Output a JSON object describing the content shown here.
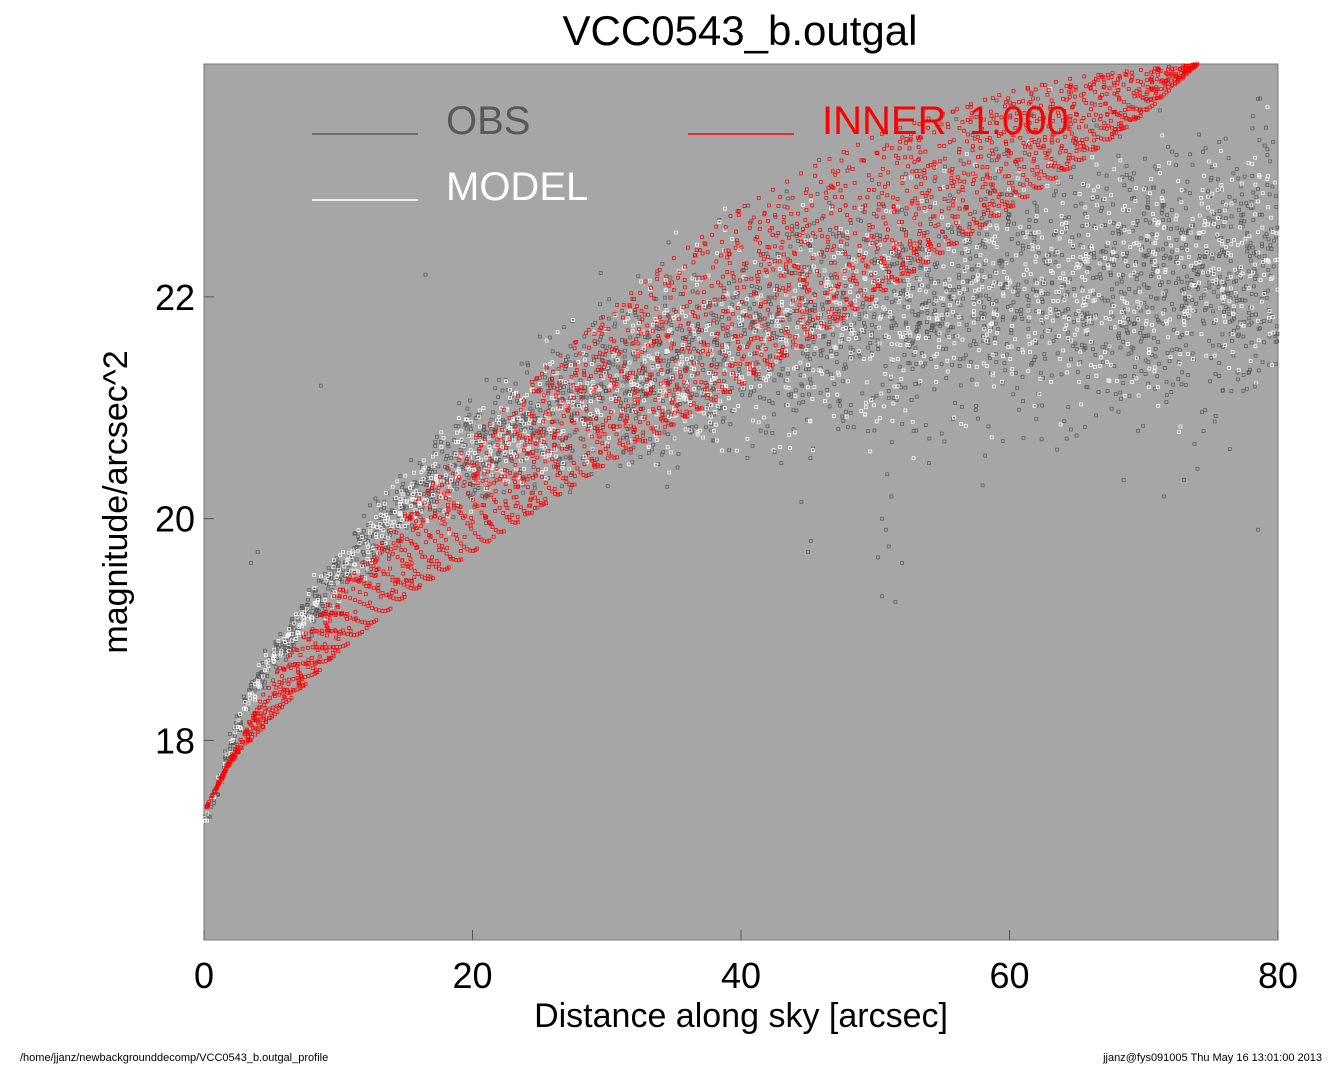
{
  "chart_data": {
    "type": "scatter",
    "title": "VCC0543_b.outgal",
    "xlabel": "Distance along sky [arcsec]",
    "ylabel": "magnitude/arcsec^2",
    "xlim": [
      0,
      80
    ],
    "ylim": [
      24.1,
      16.2
    ],
    "y_inverted": true,
    "xticks": [
      "0",
      "20",
      "40",
      "60",
      "80"
    ],
    "yticks": [
      "18",
      "20",
      "22"
    ],
    "background": "#a6a6a6",
    "grid": false,
    "legend_position": "top",
    "legend": [
      {
        "label": "OBS",
        "color": "#595959"
      },
      {
        "label": "MODEL",
        "color": "#ffffff"
      },
      {
        "label": "INNER  1.000",
        "color": "#ff0000"
      }
    ],
    "series": [
      {
        "name": "OBS",
        "color": "#595959",
        "profile_x": [
          0.2,
          1,
          2,
          3,
          5,
          7.5,
          10,
          13,
          16,
          20,
          25,
          30,
          35,
          40,
          45,
          50,
          55,
          60,
          65,
          70,
          75,
          80
        ],
        "profile_y_center": [
          17.3,
          17.6,
          17.95,
          18.3,
          18.7,
          19.1,
          19.5,
          19.9,
          20.2,
          20.55,
          20.9,
          21.2,
          21.4,
          21.6,
          21.75,
          21.9,
          22.0,
          22.1,
          22.15,
          22.2,
          22.25,
          22.3
        ],
        "profile_spread": [
          0.05,
          0.08,
          0.1,
          0.12,
          0.14,
          0.17,
          0.2,
          0.25,
          0.3,
          0.4,
          0.5,
          0.6,
          0.7,
          0.8,
          0.85,
          0.9,
          0.95,
          1.0,
          1.0,
          1.05,
          1.05,
          1.1
        ]
      },
      {
        "name": "MODEL",
        "color": "#ffffff",
        "profile_x": [
          0.2,
          1,
          2,
          3,
          5,
          7.5,
          10,
          13,
          16,
          20,
          25,
          30,
          35,
          40,
          45,
          50,
          55,
          60,
          65,
          70,
          75,
          80
        ],
        "profile_y_center": [
          17.3,
          17.6,
          17.95,
          18.3,
          18.7,
          19.1,
          19.5,
          19.9,
          20.2,
          20.55,
          20.9,
          21.2,
          21.4,
          21.6,
          21.75,
          21.9,
          22.0,
          22.1,
          22.15,
          22.2,
          22.25,
          22.3
        ],
        "profile_spread": [
          0.04,
          0.06,
          0.08,
          0.1,
          0.12,
          0.15,
          0.18,
          0.22,
          0.28,
          0.35,
          0.45,
          0.55,
          0.65,
          0.75,
          0.8,
          0.85,
          0.9,
          0.95,
          0.95,
          1.0,
          1.0,
          1.05
        ]
      },
      {
        "name": "INNER  1.000",
        "color": "#ff0000",
        "band_x": [
          0.2,
          2,
          5,
          10,
          15,
          20,
          25,
          30,
          35,
          40,
          45,
          50,
          55,
          60,
          65,
          70,
          74
        ],
        "band_y_faint": [
          17.4,
          17.85,
          18.55,
          19.35,
          20.05,
          20.7,
          21.3,
          21.85,
          22.35,
          22.8,
          23.15,
          23.45,
          23.65,
          23.85,
          23.98,
          24.05,
          24.1
        ],
        "band_y_bright": [
          17.4,
          17.8,
          18.2,
          18.8,
          19.3,
          19.7,
          20.1,
          20.5,
          20.85,
          21.2,
          21.6,
          22.0,
          22.4,
          22.8,
          23.2,
          23.65,
          24.1
        ]
      }
    ],
    "sparse_outliers": [
      {
        "x": 45,
        "y": 19.7
      },
      {
        "x": 45.2,
        "y": 19.8
      },
      {
        "x": 50.5,
        "y": 19.3
      },
      {
        "x": 51.5,
        "y": 19.25
      },
      {
        "x": 50.2,
        "y": 19.65
      },
      {
        "x": 51.0,
        "y": 19.75
      },
      {
        "x": 52.0,
        "y": 19.6
      },
      {
        "x": 50.8,
        "y": 19.9
      },
      {
        "x": 50.5,
        "y": 20.0
      },
      {
        "x": 51.2,
        "y": 20.2
      },
      {
        "x": 50.9,
        "y": 20.4
      },
      {
        "x": 44.5,
        "y": 20.15
      },
      {
        "x": 43.0,
        "y": 20.5
      },
      {
        "x": 42.5,
        "y": 20.6
      },
      {
        "x": 3.5,
        "y": 19.6
      },
      {
        "x": 4.0,
        "y": 19.7
      },
      {
        "x": 8.7,
        "y": 21.2
      },
      {
        "x": 16.5,
        "y": 22.2
      },
      {
        "x": 78.5,
        "y": 19.9
      },
      {
        "x": 71.5,
        "y": 20.2
      },
      {
        "x": 73.0,
        "y": 20.35
      },
      {
        "x": 74.0,
        "y": 20.45
      },
      {
        "x": 68.5,
        "y": 20.35
      },
      {
        "x": 58,
        "y": 20.3
      },
      {
        "x": 54,
        "y": 20.5
      },
      {
        "x": 59.5,
        "y": 20.7
      },
      {
        "x": 62,
        "y": 20.9
      },
      {
        "x": 65,
        "y": 20.75
      }
    ]
  },
  "footer": {
    "left": "/home/jjanz/newbackgrounddecomp/VCC0543_b.outgal_profile",
    "right": "jjanz@fys091005  Thu May 16 13:01:00 2013"
  }
}
